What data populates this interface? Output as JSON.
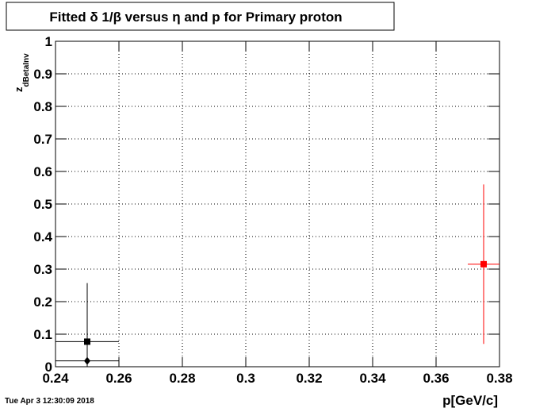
{
  "chart_data": {
    "type": "errorbar-scatter",
    "title": "Fitted δ 1/β versus η and p for Primary proton",
    "x_label": "p[GeV/c]",
    "y_label": {
      "main": "z",
      "sub": "dBetaInv"
    },
    "timestamp": "Tue Apr  3 12:30:09 2018",
    "xlim": [
      0.24,
      0.38
    ],
    "xticks": [
      0.24,
      0.26,
      0.28,
      0.3,
      0.32,
      0.34,
      0.36,
      0.38
    ],
    "ylim": [
      0,
      1
    ],
    "yticks": [
      0,
      0.1,
      0.2,
      0.3,
      0.4,
      0.5,
      0.6,
      0.7,
      0.8,
      0.9,
      1
    ],
    "grid": true,
    "series": [
      {
        "color": "#000000",
        "marker": "square",
        "x": [
          0.25
        ],
        "x_errors": [
          0.01
        ],
        "values": [
          0.077
        ],
        "y_errors": [
          0.18
        ]
      },
      {
        "color": "#000000",
        "marker": "diamond",
        "x": [
          0.25
        ],
        "x_errors": [
          0.01
        ],
        "values": [
          0.018
        ],
        "y_errors": [
          0
        ]
      },
      {
        "color": "#ff0000",
        "marker": "square",
        "x": [
          0.375
        ],
        "x_errors": [
          0.005
        ],
        "values": [
          0.315
        ],
        "y_errors": [
          0.245
        ]
      }
    ]
  }
}
